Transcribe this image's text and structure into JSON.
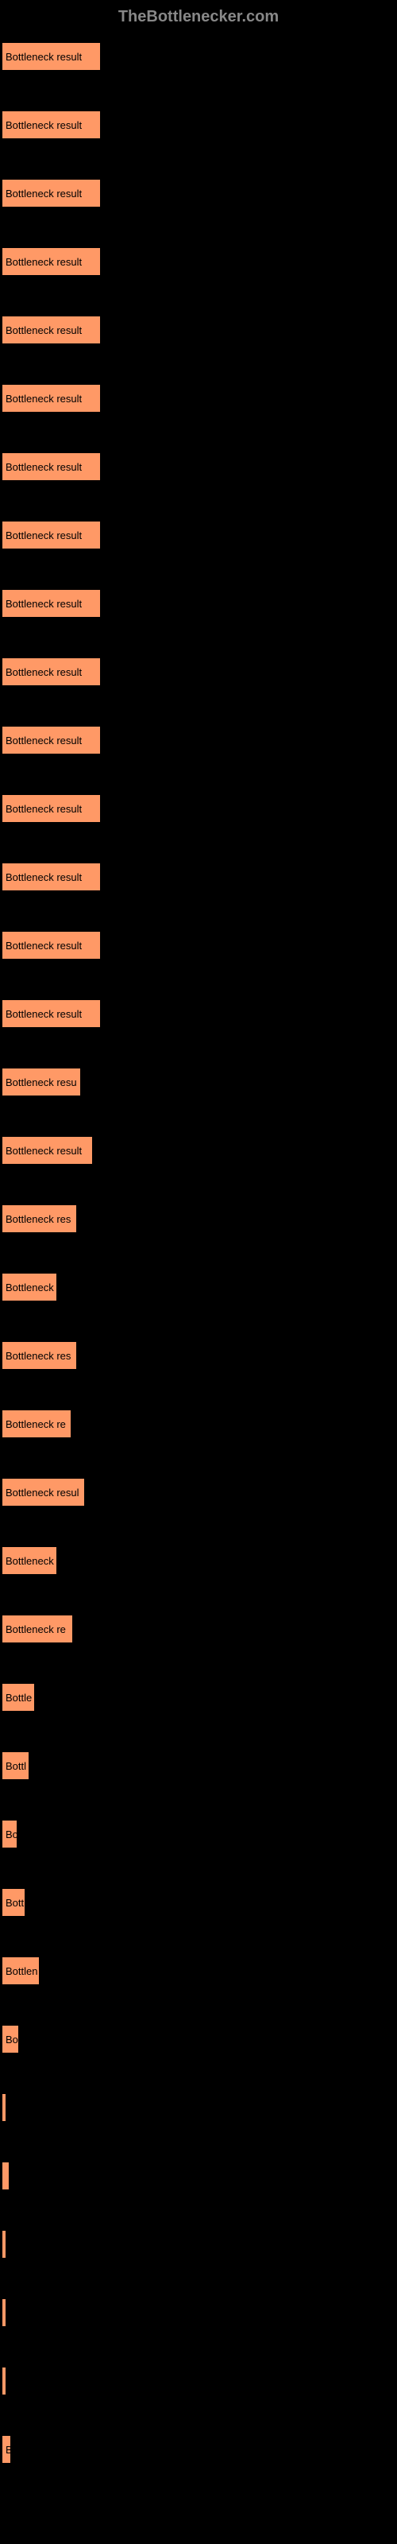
{
  "header": {
    "title": "TheBottlenecker.com"
  },
  "chart": {
    "type": "bar",
    "bar_color": "#ff9966",
    "background_color": "#000000",
    "text_color": "#000000",
    "bars": [
      {
        "label": "Bottleneck result",
        "width": 125
      },
      {
        "label": "Bottleneck result",
        "width": 125
      },
      {
        "label": "Bottleneck result",
        "width": 125
      },
      {
        "label": "Bottleneck result",
        "width": 125
      },
      {
        "label": "Bottleneck result",
        "width": 125
      },
      {
        "label": "Bottleneck result",
        "width": 125
      },
      {
        "label": "Bottleneck result",
        "width": 125
      },
      {
        "label": "Bottleneck result",
        "width": 125
      },
      {
        "label": "Bottleneck result",
        "width": 125
      },
      {
        "label": "Bottleneck result",
        "width": 125
      },
      {
        "label": "Bottleneck result",
        "width": 125
      },
      {
        "label": "Bottleneck result",
        "width": 125
      },
      {
        "label": "Bottleneck result",
        "width": 125
      },
      {
        "label": "Bottleneck result",
        "width": 125
      },
      {
        "label": "Bottleneck result",
        "width": 125
      },
      {
        "label": "Bottleneck resu",
        "width": 100
      },
      {
        "label": "Bottleneck result",
        "width": 115
      },
      {
        "label": "Bottleneck res",
        "width": 95
      },
      {
        "label": "Bottleneck",
        "width": 70
      },
      {
        "label": "Bottleneck res",
        "width": 95
      },
      {
        "label": "Bottleneck re",
        "width": 88
      },
      {
        "label": "Bottleneck resul",
        "width": 105
      },
      {
        "label": "Bottleneck",
        "width": 70
      },
      {
        "label": "Bottleneck re",
        "width": 90
      },
      {
        "label": "Bottle",
        "width": 42
      },
      {
        "label": "Bottl",
        "width": 35
      },
      {
        "label": "Bo",
        "width": 20
      },
      {
        "label": "Bott",
        "width": 30
      },
      {
        "label": "Bottlen",
        "width": 48
      },
      {
        "label": "Bo",
        "width": 22
      },
      {
        "label": "",
        "width": 3
      },
      {
        "label": "",
        "width": 10
      },
      {
        "label": "",
        "width": 2
      },
      {
        "label": "",
        "width": 2
      },
      {
        "label": "",
        "width": 2
      },
      {
        "label": "B",
        "width": 12
      }
    ]
  }
}
